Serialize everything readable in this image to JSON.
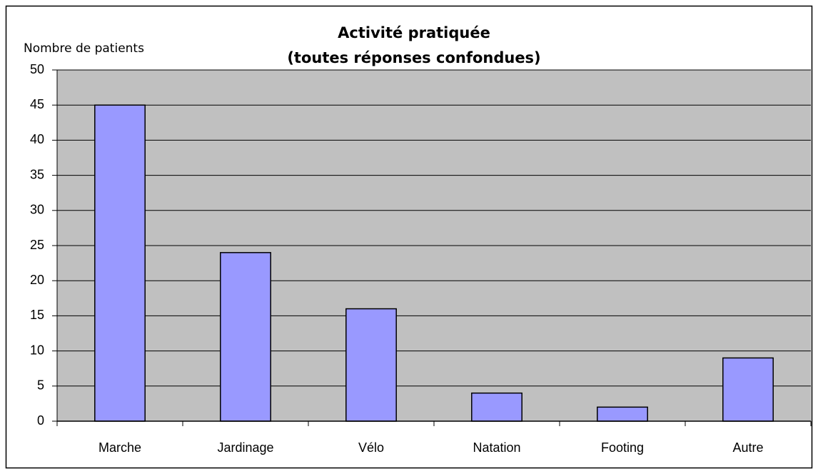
{
  "chart_data": {
    "type": "bar",
    "title": [
      "Activité pratiquée",
      "(toutes réponses confondues)"
    ],
    "y_label": "Nombre de patients",
    "categories": [
      "Marche",
      "Jardinage",
      "Vélo",
      "Natation",
      "Footing",
      "Autre"
    ],
    "values": [
      45,
      24,
      16,
      4,
      2,
      9
    ],
    "color": "#9999ff",
    "ylim": [
      0,
      50
    ],
    "yticks": [
      0,
      5,
      10,
      15,
      20,
      25,
      30,
      35,
      40,
      45,
      50
    ],
    "grid": true
  }
}
